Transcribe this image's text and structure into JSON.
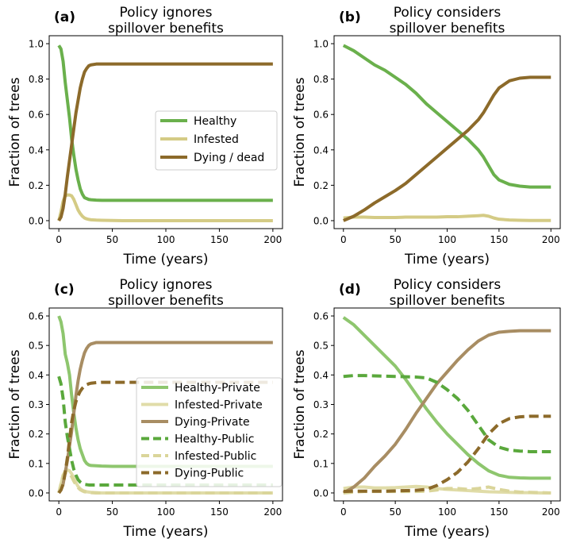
{
  "figure": {
    "colors": {
      "healthy": "#6ab04c",
      "infested": "#d4cb85",
      "dying": "#8c6a2a",
      "healthy_private": "#8ec66e",
      "infested_private": "#e0dca8",
      "dying_private": "#a88d63",
      "healthy_public": "#5aa83c",
      "infested_public": "#dad59a",
      "dying_public": "#8c6a2a"
    }
  },
  "chart_data": [
    {
      "panel": "(a)",
      "type": "line",
      "title_line1": "Policy ignores",
      "title_line2": "spillover benefits",
      "xlabel": "Time (years)",
      "ylabel": "Fraction of trees",
      "xlim": [
        0,
        200
      ],
      "ylim": [
        0,
        1.0
      ],
      "xticks": [
        "0",
        "50",
        "100",
        "150",
        "200"
      ],
      "yticks": [
        "0.0",
        "0.2",
        "0.4",
        "0.6",
        "0.8",
        "1.0"
      ],
      "legend_position": "center-right",
      "x": [
        0,
        2,
        4,
        6,
        8,
        10,
        12,
        14,
        16,
        18,
        20,
        22,
        24,
        26,
        28,
        30,
        35,
        40,
        50,
        60,
        80,
        100,
        150,
        200
      ],
      "series": [
        {
          "name": "Healthy",
          "style": "solid",
          "color_key": "healthy",
          "values": [
            0.99,
            0.97,
            0.9,
            0.78,
            0.68,
            0.58,
            0.46,
            0.37,
            0.29,
            0.23,
            0.18,
            0.15,
            0.13,
            0.125,
            0.12,
            0.118,
            0.116,
            0.115,
            0.115,
            0.115,
            0.115,
            0.115,
            0.115,
            0.115
          ]
        },
        {
          "name": "Infested",
          "style": "solid",
          "color_key": "infested",
          "values": [
            0.0,
            0.05,
            0.11,
            0.14,
            0.145,
            0.145,
            0.14,
            0.12,
            0.09,
            0.06,
            0.04,
            0.025,
            0.015,
            0.01,
            0.007,
            0.005,
            0.003,
            0.002,
            0.001,
            0.0,
            0.0,
            0.0,
            0.0,
            0.0
          ]
        },
        {
          "name": "Dying / dead",
          "style": "solid",
          "color_key": "dying",
          "values": [
            0.0,
            0.02,
            0.07,
            0.15,
            0.25,
            0.34,
            0.43,
            0.52,
            0.61,
            0.68,
            0.75,
            0.8,
            0.84,
            0.86,
            0.875,
            0.88,
            0.885,
            0.885,
            0.885,
            0.885,
            0.885,
            0.885,
            0.885,
            0.885
          ]
        }
      ]
    },
    {
      "panel": "(b)",
      "type": "line",
      "title_line1": "Policy considers",
      "title_line2": "spillover benefits",
      "xlabel": "Time (years)",
      "ylabel": "Fraction of trees",
      "xlim": [
        0,
        200
      ],
      "ylim": [
        0,
        1.0
      ],
      "xticks": [
        "0",
        "50",
        "100",
        "150",
        "200"
      ],
      "yticks": [
        "0.0",
        "0.2",
        "0.4",
        "0.6",
        "0.8",
        "1.0"
      ],
      "x": [
        0,
        10,
        20,
        30,
        40,
        50,
        60,
        70,
        80,
        90,
        100,
        110,
        120,
        130,
        135,
        140,
        145,
        150,
        160,
        170,
        180,
        190,
        200
      ],
      "series": [
        {
          "name": "Healthy",
          "style": "solid",
          "color_key": "healthy",
          "values": [
            0.99,
            0.96,
            0.92,
            0.88,
            0.85,
            0.81,
            0.77,
            0.72,
            0.66,
            0.61,
            0.56,
            0.51,
            0.46,
            0.4,
            0.36,
            0.31,
            0.26,
            0.23,
            0.205,
            0.195,
            0.19,
            0.19,
            0.19
          ]
        },
        {
          "name": "Infested",
          "style": "solid",
          "color_key": "infested",
          "values": [
            0.015,
            0.02,
            0.02,
            0.018,
            0.018,
            0.018,
            0.02,
            0.02,
            0.02,
            0.02,
            0.022,
            0.022,
            0.025,
            0.028,
            0.03,
            0.025,
            0.015,
            0.008,
            0.004,
            0.002,
            0.001,
            0.001,
            0.001
          ]
        },
        {
          "name": "Dying / dead",
          "style": "solid",
          "color_key": "dying",
          "values": [
            0.0,
            0.025,
            0.06,
            0.1,
            0.135,
            0.17,
            0.21,
            0.26,
            0.31,
            0.36,
            0.41,
            0.46,
            0.51,
            0.57,
            0.61,
            0.66,
            0.71,
            0.75,
            0.79,
            0.805,
            0.81,
            0.81,
            0.81
          ]
        }
      ]
    },
    {
      "panel": "(c)",
      "type": "line",
      "title_line1": "Policy ignores",
      "title_line2": "spillover benefits",
      "xlabel": "Time (years)",
      "ylabel": "Fraction of trees",
      "xlim": [
        0,
        200
      ],
      "ylim": [
        0,
        0.6
      ],
      "xticks": [
        "0",
        "50",
        "100",
        "150",
        "200"
      ],
      "yticks": [
        "0.0",
        "0.1",
        "0.2",
        "0.3",
        "0.4",
        "0.5",
        "0.6"
      ],
      "legend_position": "center-right",
      "x": [
        0,
        2,
        4,
        6,
        8,
        10,
        12,
        14,
        16,
        18,
        20,
        22,
        24,
        26,
        28,
        30,
        35,
        40,
        50,
        60,
        80,
        100,
        150,
        200
      ],
      "series": [
        {
          "name": "Healthy-Private",
          "style": "solid",
          "color_key": "healthy_private",
          "values": [
            0.6,
            0.58,
            0.54,
            0.47,
            0.44,
            0.4,
            0.33,
            0.27,
            0.22,
            0.18,
            0.15,
            0.13,
            0.11,
            0.1,
            0.095,
            0.093,
            0.092,
            0.091,
            0.09,
            0.09,
            0.09,
            0.09,
            0.09,
            0.09
          ]
        },
        {
          "name": "Infested-Private",
          "style": "solid",
          "color_key": "infested_private",
          "values": [
            0.0,
            0.03,
            0.06,
            0.075,
            0.078,
            0.075,
            0.065,
            0.05,
            0.035,
            0.022,
            0.014,
            0.009,
            0.006,
            0.004,
            0.003,
            0.002,
            0.001,
            0.0,
            0.0,
            0.0,
            0.0,
            0.0,
            0.0,
            0.0
          ]
        },
        {
          "name": "Dying-Private",
          "style": "solid",
          "color_key": "dying_private",
          "values": [
            0.0,
            0.01,
            0.03,
            0.07,
            0.11,
            0.16,
            0.21,
            0.27,
            0.33,
            0.38,
            0.42,
            0.45,
            0.475,
            0.49,
            0.5,
            0.505,
            0.51,
            0.51,
            0.51,
            0.51,
            0.51,
            0.51,
            0.51,
            0.51
          ]
        },
        {
          "name": "Healthy-Public",
          "style": "dashed",
          "color_key": "healthy_public",
          "values": [
            0.395,
            0.37,
            0.32,
            0.24,
            0.19,
            0.15,
            0.11,
            0.08,
            0.06,
            0.045,
            0.037,
            0.032,
            0.029,
            0.028,
            0.027,
            0.027,
            0.027,
            0.027,
            0.027,
            0.027,
            0.027,
            0.027,
            0.027,
            0.027
          ]
        },
        {
          "name": "Infested-Public",
          "style": "dashed",
          "color_key": "infested_public",
          "values": [
            0.0,
            0.03,
            0.06,
            0.07,
            0.07,
            0.065,
            0.055,
            0.04,
            0.028,
            0.018,
            0.011,
            0.007,
            0.004,
            0.003,
            0.002,
            0.001,
            0.0,
            0.0,
            0.0,
            0.0,
            0.0,
            0.0,
            0.0,
            0.0
          ]
        },
        {
          "name": "Dying-Public",
          "style": "dashed",
          "color_key": "dying_public",
          "values": [
            0.0,
            0.01,
            0.03,
            0.07,
            0.12,
            0.18,
            0.24,
            0.28,
            0.31,
            0.33,
            0.345,
            0.355,
            0.362,
            0.367,
            0.37,
            0.372,
            0.374,
            0.375,
            0.375,
            0.375,
            0.375,
            0.375,
            0.375,
            0.375
          ]
        }
      ]
    },
    {
      "panel": "(d)",
      "type": "line",
      "title_line1": "Policy considers",
      "title_line2": "spillover benefits",
      "xlabel": "Time (years)",
      "ylabel": "Fraction of trees",
      "xlim": [
        0,
        200
      ],
      "ylim": [
        0,
        0.6
      ],
      "xticks": [
        "0",
        "50",
        "100",
        "150",
        "200"
      ],
      "yticks": [
        "0.0",
        "0.1",
        "0.2",
        "0.3",
        "0.4",
        "0.5",
        "0.6"
      ],
      "x": [
        0,
        10,
        20,
        30,
        40,
        50,
        60,
        70,
        80,
        90,
        100,
        110,
        120,
        130,
        140,
        150,
        160,
        170,
        180,
        190,
        200
      ],
      "series": [
        {
          "name": "Healthy-Private",
          "style": "solid",
          "color_key": "healthy_private",
          "values": [
            0.595,
            0.57,
            0.535,
            0.5,
            0.465,
            0.43,
            0.385,
            0.335,
            0.285,
            0.24,
            0.2,
            0.165,
            0.13,
            0.1,
            0.075,
            0.06,
            0.053,
            0.051,
            0.05,
            0.05,
            0.05
          ]
        },
        {
          "name": "Infested-Private",
          "style": "solid",
          "color_key": "infested_private",
          "values": [
            0.015,
            0.02,
            0.02,
            0.017,
            0.017,
            0.018,
            0.02,
            0.022,
            0.02,
            0.015,
            0.012,
            0.01,
            0.008,
            0.006,
            0.004,
            0.003,
            0.002,
            0.001,
            0.001,
            0.0,
            0.0
          ]
        },
        {
          "name": "Dying-Private",
          "style": "solid",
          "color_key": "dying_private",
          "values": [
            0.0,
            0.02,
            0.05,
            0.09,
            0.125,
            0.165,
            0.215,
            0.27,
            0.32,
            0.37,
            0.41,
            0.45,
            0.485,
            0.515,
            0.535,
            0.545,
            0.548,
            0.55,
            0.55,
            0.55,
            0.55
          ]
        },
        {
          "name": "Healthy-Public",
          "style": "dashed",
          "color_key": "healthy_public",
          "values": [
            0.395,
            0.398,
            0.398,
            0.397,
            0.396,
            0.395,
            0.394,
            0.393,
            0.39,
            0.375,
            0.35,
            0.32,
            0.28,
            0.23,
            0.18,
            0.155,
            0.145,
            0.142,
            0.14,
            0.14,
            0.14
          ]
        },
        {
          "name": "Infested-Public",
          "style": "dashed",
          "color_key": "infested_public",
          "values": [
            0.0,
            0.003,
            0.005,
            0.005,
            0.005,
            0.005,
            0.005,
            0.005,
            0.006,
            0.01,
            0.015,
            0.015,
            0.012,
            0.015,
            0.02,
            0.012,
            0.006,
            0.003,
            0.002,
            0.001,
            0.0
          ]
        },
        {
          "name": "Dying-Public",
          "style": "dashed",
          "color_key": "dying_public",
          "values": [
            0.005,
            0.006,
            0.006,
            0.006,
            0.006,
            0.007,
            0.008,
            0.009,
            0.012,
            0.025,
            0.045,
            0.07,
            0.105,
            0.15,
            0.2,
            0.235,
            0.252,
            0.258,
            0.26,
            0.26,
            0.26
          ]
        }
      ]
    }
  ]
}
